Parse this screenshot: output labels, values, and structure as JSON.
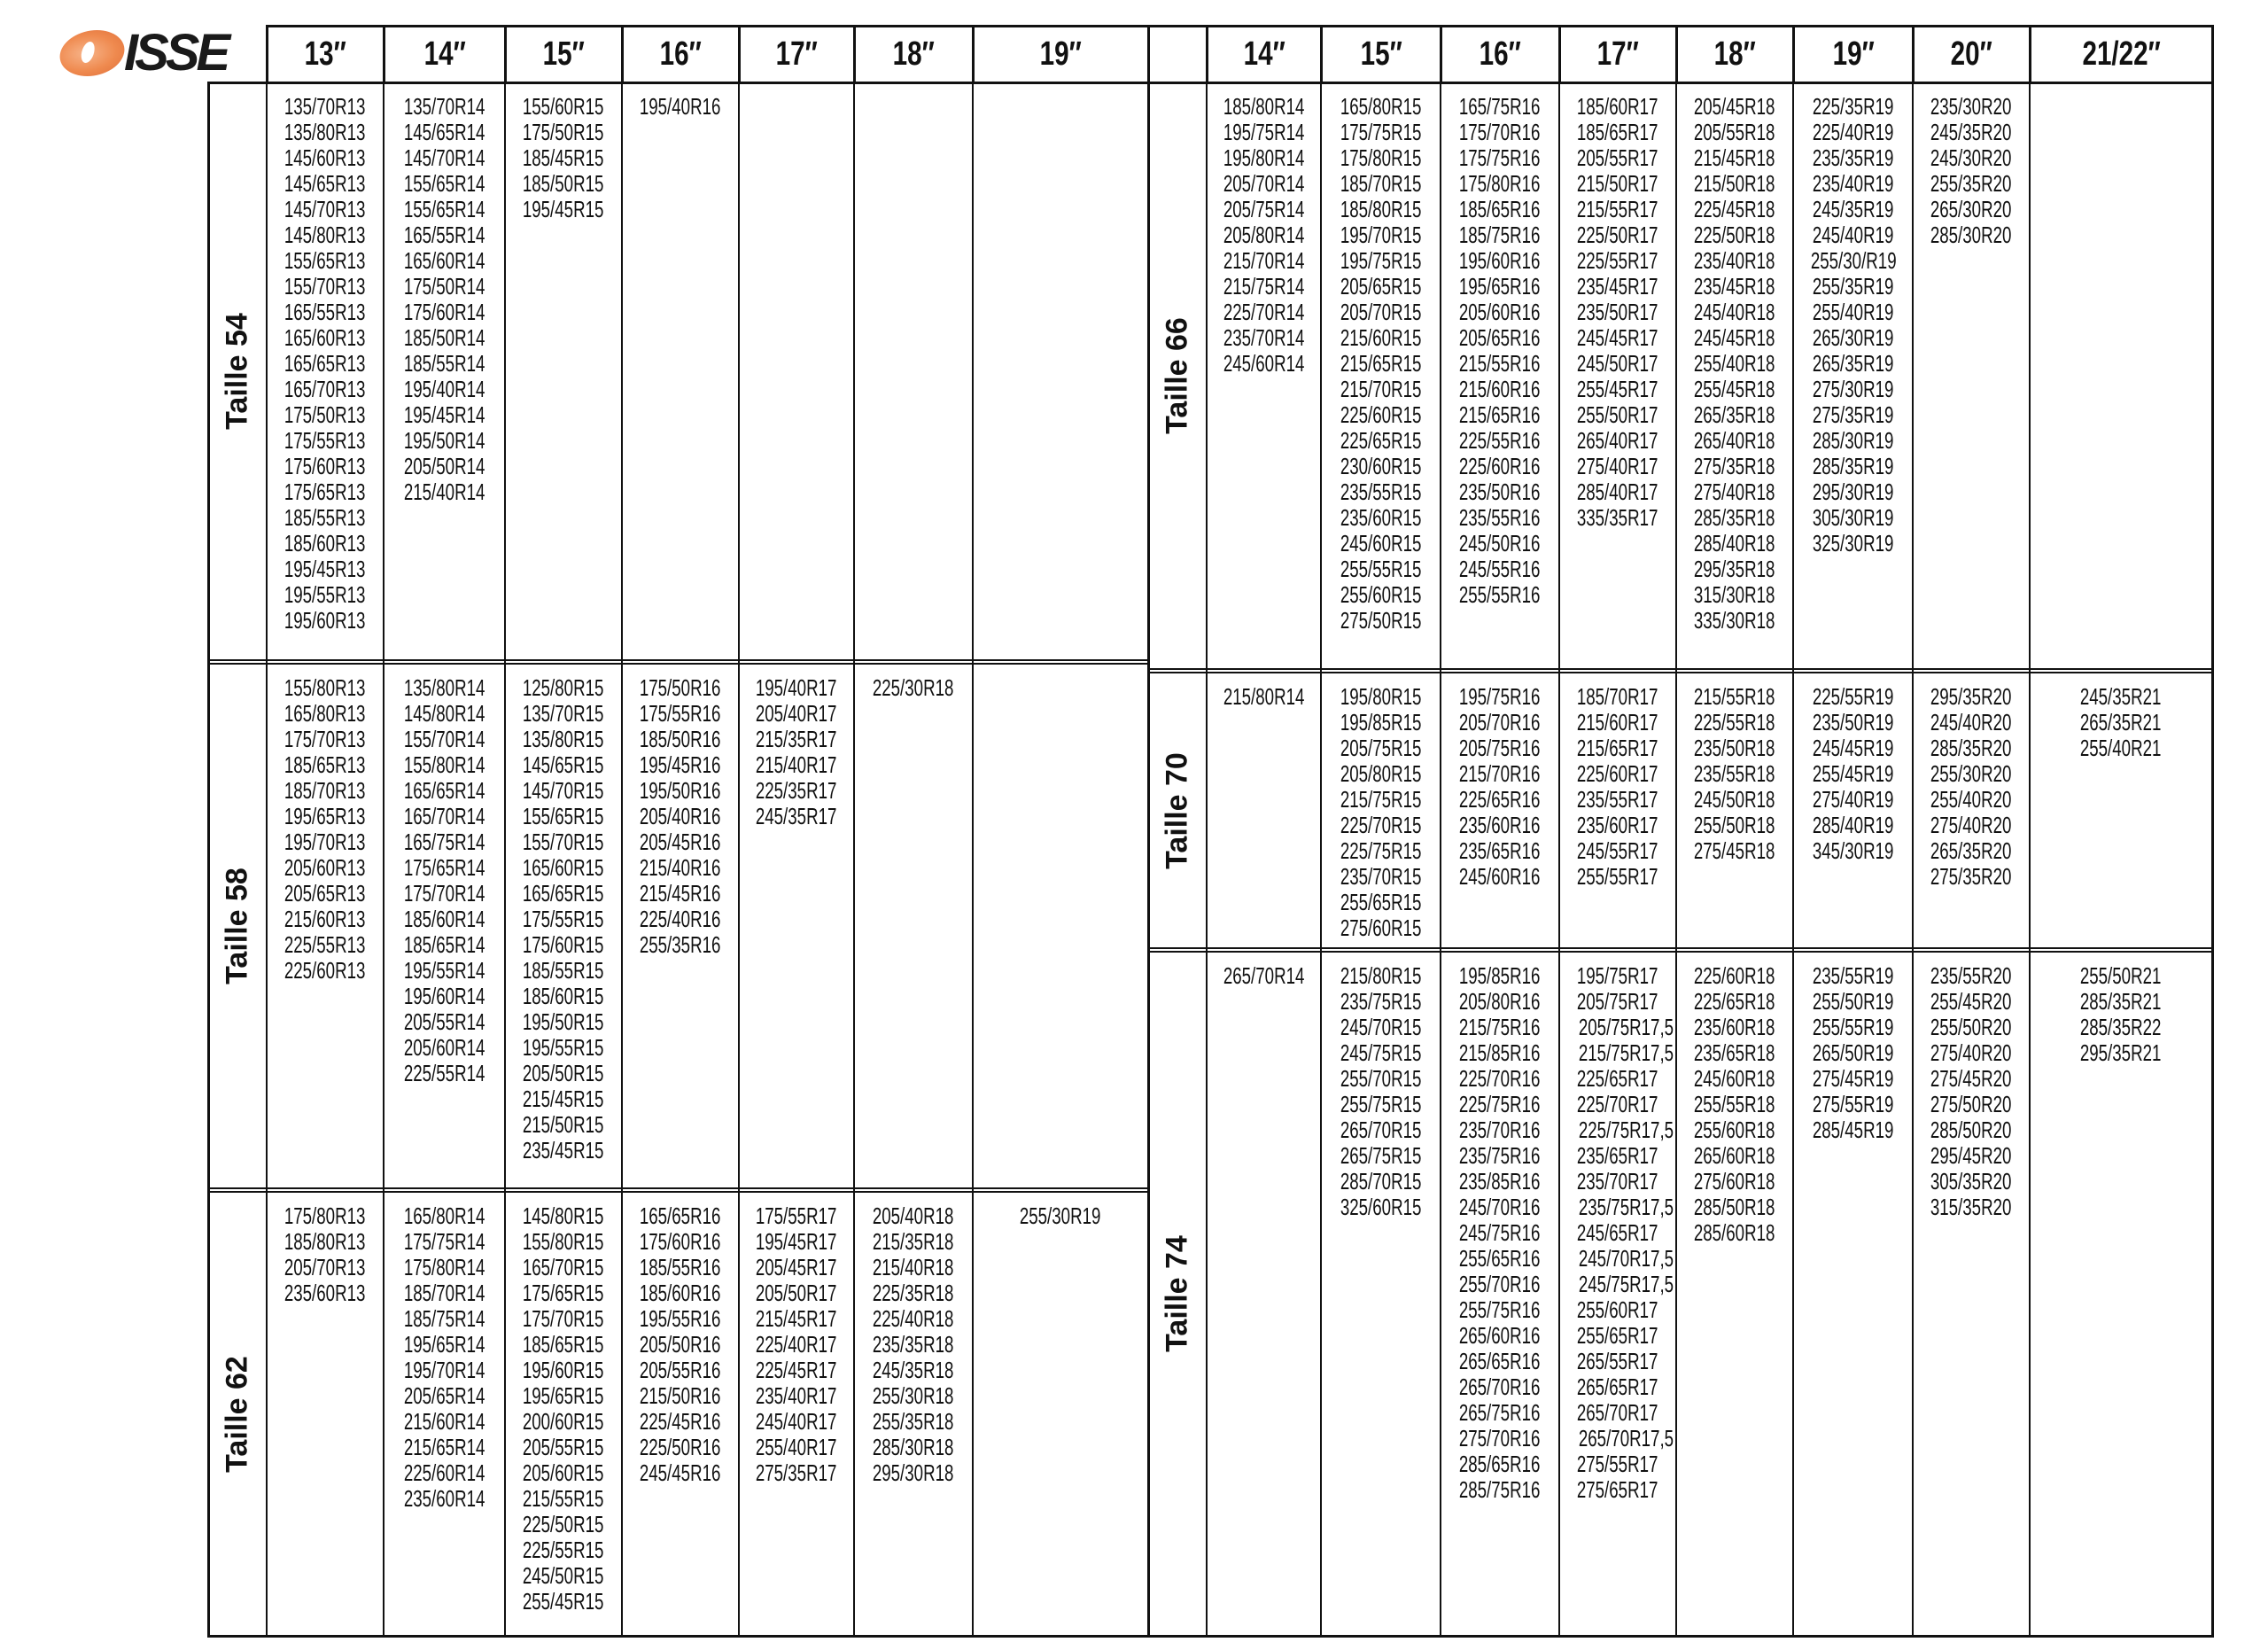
{
  "logo": {
    "text": "ISSE",
    "accent": "#ef8a4f"
  },
  "header": {
    "left_columns": [
      "13″",
      "14″",
      "15″",
      "16″",
      "17″",
      "18″",
      "19″"
    ],
    "right_columns": [
      "14″",
      "15″",
      "16″",
      "17″",
      "18″",
      "19″",
      "20″",
      "21/22″"
    ]
  },
  "left_sections": [
    {
      "label": "Taille 54",
      "cells": [
        [
          "135/70R13",
          "135/80R13",
          "145/60R13",
          "145/65R13",
          "145/70R13",
          "145/80R13",
          "155/65R13",
          "155/70R13",
          "165/55R13",
          "165/60R13",
          "165/65R13",
          "165/70R13",
          "175/50R13",
          "175/55R13",
          "175/60R13",
          "175/65R13",
          "185/55R13",
          "185/60R13",
          "195/45R13",
          "195/55R13",
          "195/60R13"
        ],
        [
          "135/70R14",
          "145/65R14",
          "145/70R14",
          "155/65R14",
          "155/65R14",
          "165/55R14",
          "165/60R14",
          "175/50R14",
          "175/60R14",
          "185/50R14",
          "185/55R14",
          "195/40R14",
          "195/45R14",
          "195/50R14",
          "205/50R14",
          "215/40R14"
        ],
        [
          "155/60R15",
          "175/50R15",
          "185/45R15",
          "185/50R15",
          "195/45R15"
        ],
        [
          "195/40R16"
        ],
        [],
        [],
        []
      ]
    },
    {
      "label": "Taille 58",
      "cells": [
        [
          "155/80R13",
          "165/80R13",
          "175/70R13",
          "185/65R13",
          "185/70R13",
          "195/65R13",
          "195/70R13",
          "205/60R13",
          "205/65R13",
          "215/60R13",
          "225/55R13",
          "225/60R13"
        ],
        [
          "135/80R14",
          "145/80R14",
          "155/70R14",
          "155/80R14",
          "165/65R14",
          "165/70R14",
          "165/75R14",
          "175/65R14",
          "175/70R14",
          "185/60R14",
          "185/65R14",
          "195/55R14",
          "195/60R14",
          "205/55R14",
          "205/60R14",
          "225/55R14"
        ],
        [
          "125/80R15",
          "135/70R15",
          "135/80R15",
          "145/65R15",
          "145/70R15",
          "155/65R15",
          "155/70R15",
          "165/60R15",
          "165/65R15",
          "175/55R15",
          "175/60R15",
          "185/55R15",
          "185/60R15",
          "195/50R15",
          "195/55R15",
          "205/50R15",
          "215/45R15",
          "215/50R15",
          "235/45R15"
        ],
        [
          "175/50R16",
          "175/55R16",
          "185/50R16",
          "195/45R16",
          "195/50R16",
          "205/40R16",
          "205/45R16",
          "215/40R16",
          "215/45R16",
          "225/40R16",
          "255/35R16"
        ],
        [
          "195/40R17",
          "205/40R17",
          "215/35R17",
          "215/40R17",
          "225/35R17",
          "245/35R17"
        ],
        [
          "225/30R18"
        ],
        []
      ]
    },
    {
      "label": "Taille 62",
      "cells": [
        [
          "175/80R13",
          "185/80R13",
          "205/70R13",
          "235/60R13"
        ],
        [
          "165/80R14",
          "175/75R14",
          "175/80R14",
          "185/70R14",
          "185/75R14",
          "195/65R14",
          "195/70R14",
          "205/65R14",
          "215/60R14",
          "215/65R14",
          "225/60R14",
          "235/60R14"
        ],
        [
          "145/80R15",
          "155/80R15",
          "165/70R15",
          "175/65R15",
          "175/70R15",
          "185/65R15",
          "195/60R15",
          "195/65R15",
          "200/60R15",
          "205/55R15",
          "205/60R15",
          "215/55R15",
          "225/50R15",
          "225/55R15",
          "245/50R15",
          "255/45R15"
        ],
        [
          "165/65R16",
          "175/60R16",
          "185/55R16",
          "185/60R16",
          "195/55R16",
          "205/50R16",
          "205/55R16",
          "215/50R16",
          "225/45R16",
          "225/50R16",
          "245/45R16"
        ],
        [
          "175/55R17",
          "195/45R17",
          "205/45R17",
          "205/50R17",
          "215/45R17",
          "225/40R17",
          "225/45R17",
          "235/40R17",
          "245/40R17",
          "255/40R17",
          "275/35R17"
        ],
        [
          "205/40R18",
          "215/35R18",
          "215/40R18",
          "225/35R18",
          "225/40R18",
          "235/35R18",
          "245/35R18",
          "255/30R18",
          "255/35R18",
          "285/30R18",
          "295/30R18"
        ],
        [
          "255/30R19"
        ]
      ]
    }
  ],
  "right_sections": [
    {
      "label": "Taille 66",
      "cells": [
        [
          "185/80R14",
          "195/75R14",
          "195/80R14",
          "205/70R14",
          "205/75R14",
          "205/80R14",
          "215/70R14",
          "215/75R14",
          "225/70R14",
          "235/70R14",
          "245/60R14"
        ],
        [
          "165/80R15",
          "175/75R15",
          "175/80R15",
          "185/70R15",
          "185/80R15",
          "195/70R15",
          "195/75R15",
          "205/65R15",
          "205/70R15",
          "215/60R15",
          "215/65R15",
          "215/70R15",
          "225/60R15",
          "225/65R15",
          "230/60R15",
          "235/55R15",
          "235/60R15",
          "245/60R15",
          "255/55R15",
          "255/60R15",
          "275/50R15"
        ],
        [
          "165/75R16",
          "175/70R16",
          "175/75R16",
          "175/80R16",
          "185/65R16",
          "185/75R16",
          "195/60R16",
          "195/65R16",
          "205/60R16",
          "205/65R16",
          "215/55R16",
          "215/60R16",
          "215/65R16",
          "225/55R16",
          "225/60R16",
          "235/50R16",
          "235/55R16",
          "245/50R16",
          "245/55R16",
          "255/55R16"
        ],
        [
          "185/60R17",
          "185/65R17",
          "205/55R17",
          "215/50R17",
          "215/55R17",
          "225/50R17",
          "225/55R17",
          "235/45R17",
          "235/50R17",
          "245/45R17",
          "245/50R17",
          "255/45R17",
          "255/50R17",
          "265/40R17",
          "275/40R17",
          "285/40R17",
          "335/35R17"
        ],
        [
          "205/45R18",
          "205/55R18",
          "215/45R18",
          "215/50R18",
          "225/45R18",
          "225/50R18",
          "235/40R18",
          "235/45R18",
          "245/40R18",
          "245/45R18",
          "255/40R18",
          "255/45R18",
          "265/35R18",
          "265/40R18",
          "275/35R18",
          "275/40R18",
          "285/35R18",
          "285/40R18",
          "295/35R18",
          "315/30R18",
          "335/30R18"
        ],
        [
          "225/35R19",
          "225/40R19",
          "235/35R19",
          "235/40R19",
          "245/35R19",
          "245/40R19",
          "255/30/R19",
          "255/35R19",
          "255/40R19",
          "265/30R19",
          "265/35R19",
          "275/30R19",
          "275/35R19",
          "285/30R19",
          "285/35R19",
          "295/30R19",
          "305/30R19",
          "325/30R19"
        ],
        [
          "235/30R20",
          "245/35R20",
          "245/30R20",
          "255/35R20",
          "265/30R20",
          "285/30R20"
        ],
        []
      ]
    },
    {
      "label": "Taille 70",
      "cells": [
        [
          "215/80R14"
        ],
        [
          "195/80R15",
          "195/85R15",
          "205/75R15",
          "205/80R15",
          "215/75R15",
          "225/70R15",
          "225/75R15",
          "235/70R15",
          "255/65R15",
          "275/60R15"
        ],
        [
          "195/75R16",
          "205/70R16",
          "205/75R16",
          "215/70R16",
          "225/65R16",
          "235/60R16",
          "235/65R16",
          "245/60R16"
        ],
        [
          "185/70R17",
          "215/60R17",
          "215/65R17",
          "225/60R17",
          "235/55R17",
          "235/60R17",
          "245/55R17",
          "255/55R17"
        ],
        [
          "215/55R18",
          "225/55R18",
          "235/50R18",
          "235/55R18",
          "245/50R18",
          "255/50R18",
          "275/45R18"
        ],
        [
          "225/55R19",
          "235/50R19",
          "245/45R19",
          "255/45R19",
          "275/40R19",
          "285/40R19",
          "345/30R19"
        ],
        [
          "295/35R20",
          "245/40R20",
          "285/35R20",
          "255/30R20",
          "255/40R20",
          "275/40R20",
          "265/35R20",
          "275/35R20"
        ],
        [
          "245/35R21",
          "265/35R21",
          "255/40R21"
        ]
      ]
    },
    {
      "label": "Taille 74",
      "cells": [
        [
          "265/70R14"
        ],
        [
          "215/80R15",
          "235/75R15",
          "245/70R15",
          "245/75R15",
          "255/70R15",
          "255/75R15",
          "265/70R15",
          "265/75R15",
          "285/70R15",
          "325/60R15"
        ],
        [
          "195/85R16",
          "205/80R16",
          "215/75R16",
          "215/85R16",
          "225/70R16",
          "225/75R16",
          "235/70R16",
          "235/75R16",
          "235/85R16",
          "245/70R16",
          "245/75R16",
          "255/65R16",
          "255/70R16",
          "255/75R16",
          "265/60R16",
          "265/65R16",
          "265/70R16",
          "265/75R16",
          "275/70R16",
          "285/65R16",
          "285/75R16"
        ],
        [
          "195/75R17",
          "205/75R17",
          "205/75R17,5",
          "215/75R17,5",
          "225/65R17",
          "225/70R17",
          "225/75R17,5",
          "235/65R17",
          "235/70R17",
          "235/75R17,5",
          "245/65R17",
          "245/70R17,5",
          "245/75R17,5",
          "255/60R17",
          "255/65R17",
          "265/55R17",
          "265/65R17",
          "265/70R17",
          "265/70R17,5",
          "275/55R17",
          "275/65R17"
        ],
        [
          "225/60R18",
          "225/65R18",
          "235/60R18",
          "235/65R18",
          "245/60R18",
          "255/55R18",
          "255/60R18",
          "265/60R18",
          "275/60R18",
          "285/50R18",
          "285/60R18"
        ],
        [
          "235/55R19",
          "255/50R19",
          "255/55R19",
          "265/50R19",
          "275/45R19",
          "275/55R19",
          "285/45R19"
        ],
        [
          "235/55R20",
          "255/45R20",
          "255/50R20",
          "275/40R20",
          "275/45R20",
          "275/50R20",
          "285/50R20",
          "295/45R20",
          "305/35R20",
          "315/35R20"
        ],
        [
          "255/50R21",
          "285/35R21",
          "285/35R22",
          "295/35R21"
        ]
      ]
    }
  ]
}
